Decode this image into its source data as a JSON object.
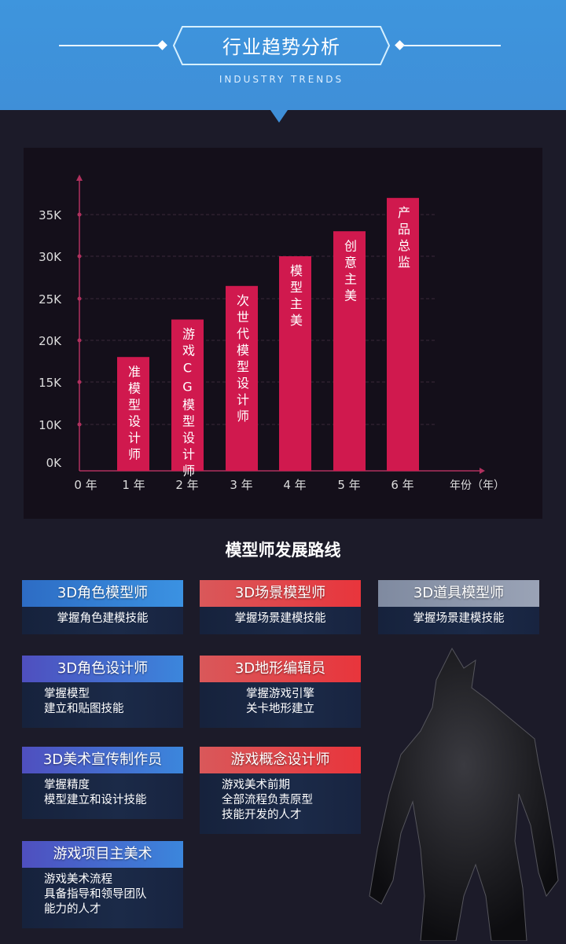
{
  "header": {
    "title": "行业趋势分析",
    "subtitle": "INDUSTRY TRENDS"
  },
  "colors": {
    "header_bg": "#3f93db",
    "body_bg": "#1c1b29",
    "bar": "#d0194e",
    "axis": "#b0305e"
  },
  "chart_data": {
    "type": "bar",
    "categories": [
      "0 年",
      "1 年",
      "2 年",
      "3 年",
      "4 年",
      "5 年",
      "6 年"
    ],
    "bars": [
      {
        "x": "1 年",
        "value": 18000,
        "label": "准模型设计师"
      },
      {
        "x": "2 年",
        "value": 22500,
        "label": "游戏CG模型设计师"
      },
      {
        "x": "3 年",
        "value": 26500,
        "label": "次世代模型设计师"
      },
      {
        "x": "4 年",
        "value": 30000,
        "label": "模型主美"
      },
      {
        "x": "5 年",
        "value": 33000,
        "label": "创意主美"
      },
      {
        "x": "6 年",
        "value": 37000,
        "label": "产品总监"
      }
    ],
    "yticks": [
      "0K",
      "10K",
      "15K",
      "20K",
      "25K",
      "30K",
      "35K"
    ],
    "xlabel": "年份（年）",
    "grid": true
  },
  "section_title": "模型师发展路线",
  "cards": [
    {
      "title": "3D角色模型师",
      "desc": [
        "掌握角色建模技能"
      ]
    },
    {
      "title": "3D场景模型师",
      "desc": [
        "掌握场景建模技能"
      ]
    },
    {
      "title": "3D道具模型师",
      "desc": [
        "掌握场景建模技能"
      ]
    },
    {
      "title": "3D角色设计师",
      "desc": [
        "掌握模型",
        "建立和贴图技能"
      ]
    },
    {
      "title": "3D地形编辑员",
      "desc": [
        "掌握游戏引擎",
        "关卡地形建立"
      ]
    },
    {
      "title": "3D美术宣传制作员",
      "desc": [
        "掌握精度",
        "模型建立和设计技能"
      ]
    },
    {
      "title": "游戏概念设计师",
      "desc": [
        "游戏美术前期",
        "全部流程负责原型",
        "技能开发的人才"
      ]
    },
    {
      "title": "游戏项目主美术",
      "desc": [
        "游戏美术流程",
        "具备指导和领导团队",
        "能力的人才"
      ]
    }
  ]
}
